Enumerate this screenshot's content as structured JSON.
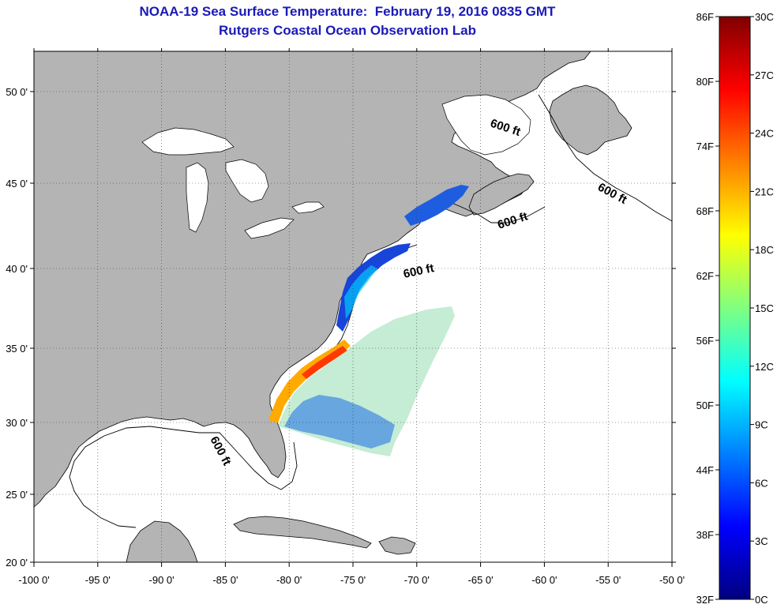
{
  "header": {
    "title_line1": "NOAA-19 Sea Surface Temperature:  February 19, 2016 0835 GMT",
    "title_line2": "Rutgers Coastal Ocean Observation Lab"
  },
  "map": {
    "lon_ticks": [
      "-100 0'",
      "-95 0'",
      "-90 0'",
      "-85 0'",
      "-80 0'",
      "-75 0'",
      "-70 0'",
      "-65 0'",
      "-60 0'",
      "-55 0'",
      "-50 0'"
    ],
    "lat_ticks": [
      "50 0'",
      "45 0'",
      "40 0'",
      "35 0'",
      "30 0'",
      "25 0'",
      "20 0'"
    ],
    "isobath_labels": [
      "600 ft",
      "600 ft",
      "600 ft",
      "600 ft",
      "600 ft"
    ],
    "land_color": "#b4b4b4",
    "ocean_color": "#ffffff"
  },
  "colorbar": {
    "f_labels": [
      "86F",
      "80F",
      "74F",
      "68F",
      "62F",
      "56F",
      "50F",
      "44F",
      "38F",
      "32F"
    ],
    "c_labels": [
      "30C",
      "27C",
      "24C",
      "21C",
      "18C",
      "15C",
      "12C",
      "9C",
      "6C",
      "3C",
      "0C"
    ],
    "colors": [
      "#000080",
      "#0000ff",
      "#0080ff",
      "#00ffff",
      "#80ff80",
      "#ffff00",
      "#ff8000",
      "#ff0000",
      "#800000"
    ]
  }
}
